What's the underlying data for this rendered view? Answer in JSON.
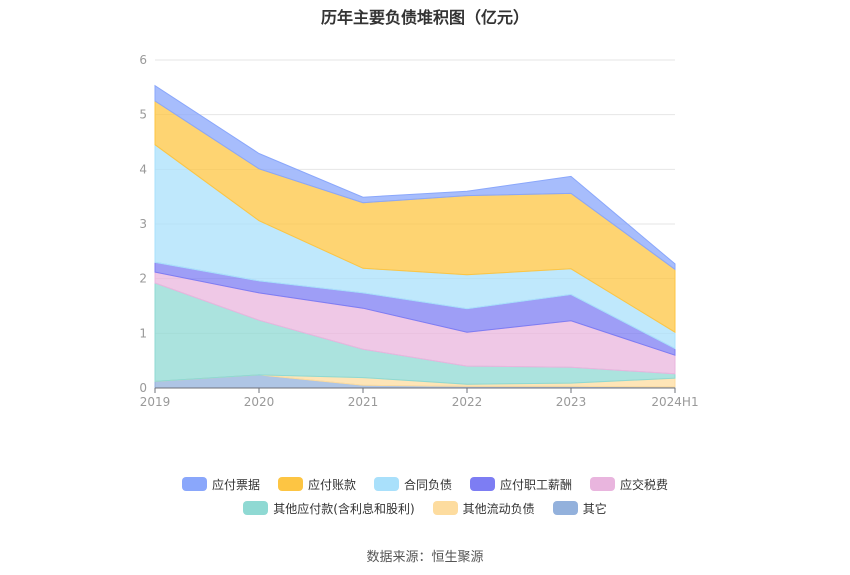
{
  "chart_data": {
    "type": "area",
    "stacked": true,
    "title": "历年主要负债堆积图（亿元）",
    "categories": [
      "2019",
      "2020",
      "2021",
      "2022",
      "2023",
      "2024H1"
    ],
    "ylim": [
      0,
      6
    ],
    "yticks": [
      "0",
      "1",
      "2",
      "3",
      "4",
      "5",
      "6"
    ],
    "grid": true,
    "legend_position": "bottom",
    "series": [
      {
        "name": "其它",
        "color": "#93b1dc",
        "values": [
          0.12,
          0.24,
          0.05,
          0.03,
          0.03,
          0.02
        ]
      },
      {
        "name": "其他流动负债",
        "color": "#fddc9f",
        "values": [
          0.0,
          0.0,
          0.14,
          0.04,
          0.06,
          0.16
        ]
      },
      {
        "name": "其他应付款(含利息和股利)",
        "color": "#8fd9d3",
        "values": [
          1.8,
          1.0,
          0.52,
          0.33,
          0.29,
          0.08
        ]
      },
      {
        "name": "应交税费",
        "color": "#e9b5de",
        "values": [
          0.2,
          0.5,
          0.75,
          0.62,
          0.85,
          0.34
        ]
      },
      {
        "name": "应付职工薪酬",
        "color": "#7d7df3",
        "values": [
          0.18,
          0.22,
          0.28,
          0.43,
          0.48,
          0.12
        ]
      },
      {
        "name": "合同负债",
        "color": "#a9e0fb",
        "values": [
          2.15,
          1.1,
          0.45,
          0.62,
          0.47,
          0.3
        ]
      },
      {
        "name": "应付账款",
        "color": "#fdc543",
        "values": [
          0.8,
          0.95,
          1.2,
          1.45,
          1.38,
          1.15
        ]
      },
      {
        "name": "应付票据",
        "color": "#8aa7fb",
        "values": [
          0.28,
          0.28,
          0.1,
          0.08,
          0.31,
          0.1
        ]
      }
    ]
  },
  "legend": {
    "row1": [
      {
        "label": "应付票据",
        "color": "#8aa7fb"
      },
      {
        "label": "应付账款",
        "color": "#fdc543"
      },
      {
        "label": "合同负债",
        "color": "#a9e0fb"
      },
      {
        "label": "应付职工薪酬",
        "color": "#7d7df3"
      },
      {
        "label": "应交税费",
        "color": "#e9b5de"
      }
    ],
    "row2": [
      {
        "label": "其他应付款(含利息和股利)",
        "color": "#8fd9d3"
      },
      {
        "label": "其他流动负债",
        "color": "#fddc9f"
      },
      {
        "label": "其它",
        "color": "#93b1dc"
      }
    ]
  },
  "source_note": "数据来源：恒生聚源"
}
